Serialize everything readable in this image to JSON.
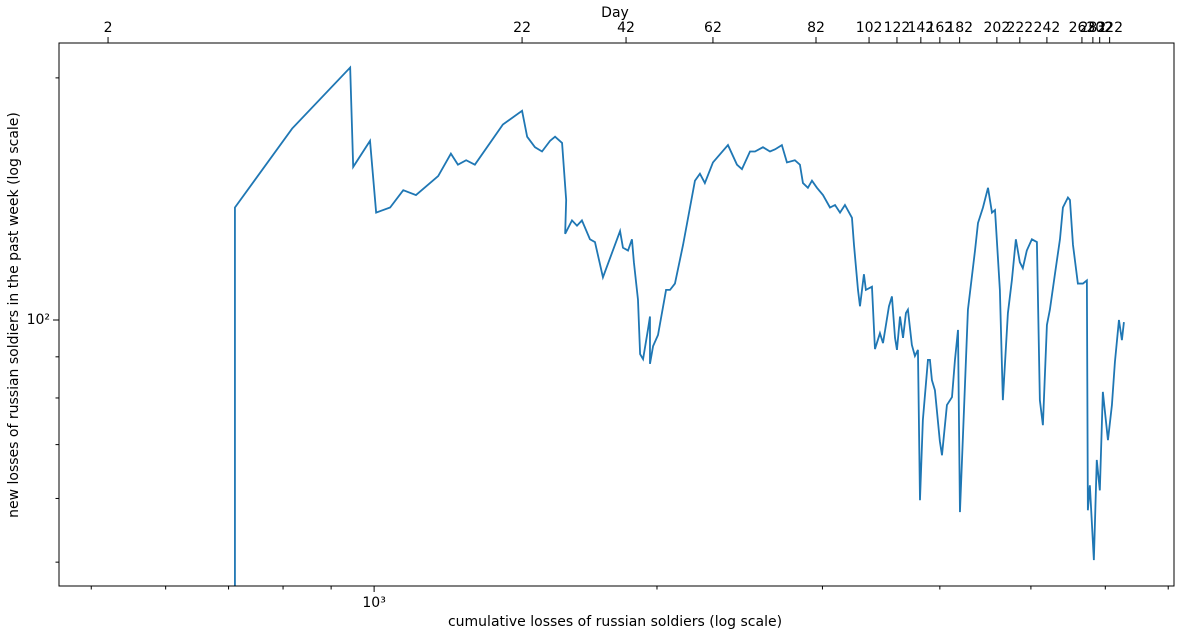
{
  "chart_data": {
    "type": "line",
    "xlabel": "cumulative losses of russian soldiers (log scale)",
    "ylabel": "new losses of russian soldiers in the past week (log scale)",
    "top_axis_label": "Day",
    "xscale": "log",
    "yscale": "log",
    "color": "#1f77b4",
    "xlim": [
      462,
      7100
    ],
    "ylim": [
      46.7,
      221
    ],
    "xticks": [
      {
        "value": 1000,
        "label": "10³"
      }
    ],
    "yticks": [
      {
        "value": 100,
        "label": "10²"
      }
    ],
    "xminorticks": [
      500,
      600,
      700,
      800,
      900,
      2000,
      3000,
      4000,
      5000,
      6000,
      7000
    ],
    "yminorticks": [
      50,
      60,
      70,
      80,
      90,
      200
    ],
    "top_ticks": [
      {
        "value": 521,
        "label": "2"
      },
      {
        "value": 1437,
        "label": "22"
      },
      {
        "value": 1854,
        "label": "42"
      },
      {
        "value": 2294,
        "label": "62"
      },
      {
        "value": 2953,
        "label": "82"
      },
      {
        "value": 3363,
        "label": "102"
      },
      {
        "value": 3601,
        "label": "122"
      },
      {
        "value": 3818,
        "label": "142"
      },
      {
        "value": 4000,
        "label": "162"
      },
      {
        "value": 4199,
        "label": "182"
      },
      {
        "value": 4600,
        "label": "202"
      },
      {
        "value": 4866,
        "label": "222"
      },
      {
        "value": 5200,
        "label": "242"
      },
      {
        "value": 5666,
        "label": "262"
      },
      {
        "value": 5820,
        "label": "282"
      },
      {
        "value": 5918,
        "label": "302"
      },
      {
        "value": 6064,
        "label": "322"
      }
    ],
    "x": [
      711,
      711,
      818,
      943,
      950,
      990,
      1005,
      1040,
      1074,
      1108,
      1170,
      1207,
      1228,
      1253,
      1280,
      1371,
      1437,
      1455,
      1483,
      1509,
      1539,
      1558,
      1585,
      1601,
      1597,
      1624,
      1644,
      1664,
      1697,
      1718,
      1752,
      1827,
      1840,
      1863,
      1881,
      1890,
      1909,
      1919,
      1933,
      1956,
      1966,
      1966,
      1981,
      2005,
      2045,
      2065,
      2090,
      2132,
      2195,
      2222,
      2249,
      2294,
      2380,
      2433,
      2463,
      2512,
      2543,
      2593,
      2638,
      2671,
      2716,
      2750,
      2804,
      2839,
      2860,
      2895,
      2924,
      2960,
      3004,
      3056,
      3094,
      3132,
      3170,
      3225,
      3241,
      3273,
      3289,
      3321,
      3337,
      3387,
      3412,
      3454,
      3480,
      3531,
      3557,
      3584,
      3601,
      3628,
      3655,
      3681,
      3699,
      3735,
      3763,
      3791,
      3810,
      3837,
      3885,
      3904,
      3923,
      3952,
      4000,
      4021,
      4070,
      4121,
      4151,
      4182,
      4202,
      4285,
      4360,
      4392,
      4446,
      4501,
      4545,
      4579,
      4634,
      4668,
      4726,
      4772,
      4819,
      4866,
      4902,
      4950,
      5012,
      5074,
      5111,
      5149,
      5200,
      5238,
      5303,
      5369,
      5408,
      5475,
      5502,
      5543,
      5610,
      5680,
      5735,
      5749,
      5777,
      5834,
      5876,
      5920,
      5964,
      6039,
      6098,
      6143,
      6204,
      6249,
      6280
    ],
    "values": [
      40,
      138,
      173,
      206,
      155,
      167,
      136,
      138,
      145,
      143,
      151,
      161,
      156,
      158,
      156,
      175,
      182,
      169,
      164,
      162,
      167,
      169,
      166,
      141,
      128,
      133,
      131,
      133,
      126,
      125,
      113,
      129,
      123,
      122,
      126,
      118,
      106,
      90.7,
      89.4,
      97.2,
      101,
      88.2,
      92.8,
      95.8,
      109,
      109,
      111,
      124,
      149,
      152,
      148,
      157,
      165,
      156,
      154,
      162,
      162,
      164,
      162,
      163,
      165,
      157,
      158,
      156,
      148,
      146,
      149,
      146,
      143,
      138,
      139,
      136,
      139,
      134,
      124,
      109,
      104,
      114,
      109,
      110,
      92.0,
      96.3,
      93.6,
      104,
      107,
      95.0,
      91.8,
      101,
      95.0,
      102,
      103,
      93.1,
      90.2,
      91.8,
      59.7,
      75.1,
      89.2,
      89.2,
      84.2,
      81.8,
      70.7,
      67.9,
      78.4,
      80.2,
      89.2,
      97.2,
      57.7,
      103,
      122,
      132,
      138,
      146,
      136,
      137,
      109,
      79.5,
      102,
      112,
      126,
      118,
      116,
      122,
      126,
      125,
      79.5,
      74.0,
      98.6,
      103,
      114,
      126,
      138,
      142,
      141,
      124,
      111,
      111,
      112,
      58.0,
      62.3,
      50.3,
      67.0,
      61.4,
      81.4,
      70.9,
      78.4,
      88.7,
      100,
      94.4,
      99.4
    ]
  }
}
